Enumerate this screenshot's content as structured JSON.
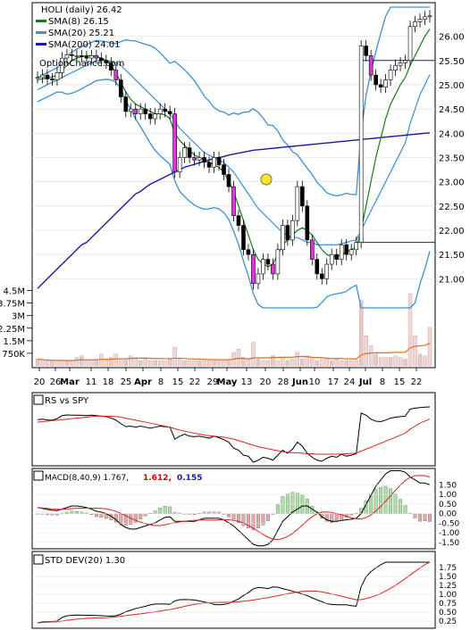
{
  "chart_data": [
    {
      "type": "candlestick",
      "title": "HOLI (daily) 26.42",
      "legend": [
        {
          "label": "SMA(8) 26.15",
          "color": "#1a7a1a"
        },
        {
          "label": "SMA(20) 25.21",
          "color": "#3b8fd6"
        },
        {
          "label": "SMA(200) 24.01",
          "color": "#1a1aa8"
        }
      ],
      "watermark": "OptionChance.com",
      "price_ticks": [
        "26.00",
        "25.50",
        "25.00",
        "24.50",
        "24.00",
        "23.50",
        "23.00",
        "22.50",
        "22.00",
        "21.50",
        "21.00"
      ],
      "volume_ticks": [
        "4.5M",
        "3.75M",
        "3M",
        "2.25M",
        "1.5M",
        "750K"
      ],
      "date_ticks": [
        "20",
        "26",
        "Mar",
        "11",
        "18",
        "25",
        "Apr",
        "8",
        "15",
        "22",
        "29",
        "May",
        "13",
        "20",
        "28",
        "Jun",
        "10",
        "17",
        "24",
        "Jul",
        "8",
        "15",
        "22"
      ],
      "ylim": [
        20.4,
        26.6
      ],
      "close": [
        25.15,
        25.2,
        25.12,
        25.1,
        25.25,
        25.55,
        25.62,
        25.6,
        25.6,
        25.58,
        25.55,
        25.6,
        25.55,
        25.5,
        25.45,
        25.3,
        25.1,
        24.75,
        24.45,
        24.5,
        24.4,
        24.5,
        24.4,
        24.3,
        24.4,
        24.5,
        24.45,
        24.4,
        23.2,
        23.5,
        23.7,
        23.5,
        23.45,
        23.5,
        23.4,
        23.3,
        23.5,
        23.35,
        23.15,
        22.9,
        22.3,
        22.1,
        21.6,
        21.5,
        20.9,
        21.1,
        21.4,
        21.3,
        21.1,
        21.6,
        22.1,
        21.8,
        22.2,
        22.9,
        22.5,
        21.8,
        21.4,
        21.1,
        21.0,
        21.3,
        21.5,
        21.4,
        21.7,
        21.5,
        21.6,
        21.75,
        25.8,
        25.6,
        25.2,
        25.0,
        24.95,
        25.1,
        25.3,
        25.4,
        25.45,
        25.5,
        26.2,
        26.3,
        26.35,
        26.4,
        26.42
      ],
      "sma8": [
        25.1,
        25.12,
        25.14,
        25.16,
        25.2,
        25.3,
        25.4,
        25.5,
        25.55,
        25.58,
        25.6,
        25.6,
        25.58,
        25.55,
        25.5,
        25.4,
        25.25,
        25.05,
        24.85,
        24.7,
        24.6,
        24.55,
        24.5,
        24.45,
        24.4,
        24.4,
        24.38,
        24.3,
        24.0,
        23.85,
        23.75,
        23.65,
        23.55,
        23.5,
        23.45,
        23.4,
        23.35,
        23.3,
        23.2,
        23.0,
        22.8,
        22.5,
        22.2,
        21.9,
        21.6,
        21.4,
        21.3,
        21.25,
        21.3,
        21.5,
        21.7,
        21.8,
        21.9,
        22.0,
        22.05,
        22.0,
        21.9,
        21.75,
        21.6,
        21.5,
        21.45,
        21.45,
        21.5,
        21.55,
        21.6,
        21.65,
        22.0,
        22.5,
        23.0,
        23.5,
        23.9,
        24.3,
        24.6,
        24.8,
        25.0,
        25.15,
        25.4,
        25.6,
        25.8,
        26.0,
        26.15
      ],
      "sma20": [
        24.9,
        24.95,
        25.0,
        25.05,
        25.1,
        25.15,
        25.2,
        25.25,
        25.3,
        25.35,
        25.4,
        25.45,
        25.5,
        25.5,
        25.5,
        25.48,
        25.45,
        25.4,
        25.3,
        25.2,
        25.1,
        25.0,
        24.9,
        24.8,
        24.7,
        24.6,
        24.5,
        24.4,
        24.25,
        24.1,
        24.0,
        23.9,
        23.8,
        23.7,
        23.6,
        23.55,
        23.5,
        23.45,
        23.4,
        23.3,
        23.2,
        23.05,
        22.9,
        22.75,
        22.6,
        22.45,
        22.35,
        22.25,
        22.15,
        22.05,
        21.95,
        21.9,
        21.85,
        21.85,
        21.8,
        21.75,
        21.75,
        21.7,
        21.7,
        21.7,
        21.7,
        21.7,
        21.72,
        21.75,
        21.78,
        21.8,
        22.0,
        22.2,
        22.4,
        22.6,
        22.8,
        23.0,
        23.2,
        23.4,
        23.6,
        23.8,
        24.2,
        24.5,
        24.8,
        25.0,
        25.21
      ],
      "sma200": [
        20.8,
        20.9,
        21.0,
        21.1,
        21.2,
        21.3,
        21.4,
        21.5,
        21.6,
        21.7,
        21.75,
        21.85,
        21.95,
        22.05,
        22.15,
        22.25,
        22.35,
        22.45,
        22.55,
        22.65,
        22.75,
        22.8,
        22.88,
        22.95,
        23.0,
        23.05,
        23.1,
        23.15,
        23.2,
        23.25,
        23.3,
        23.33,
        23.36,
        23.39,
        23.42,
        23.45,
        23.48,
        23.5,
        23.52,
        23.55,
        23.57,
        23.59,
        23.61,
        23.63,
        23.65,
        23.66,
        23.67,
        23.68,
        23.69,
        23.7,
        23.71,
        23.72,
        23.73,
        23.74,
        23.75,
        23.76,
        23.77,
        23.78,
        23.79,
        23.8,
        23.81,
        23.82,
        23.83,
        23.84,
        23.85,
        23.86,
        23.87,
        23.88,
        23.89,
        23.9,
        23.91,
        23.92,
        23.93,
        23.94,
        23.95,
        23.96,
        23.97,
        23.98,
        23.99,
        24.0,
        24.01
      ],
      "volume_m": [
        0.4,
        0.35,
        0.3,
        0.3,
        0.3,
        0.3,
        0.3,
        0.3,
        0.5,
        0.6,
        0.3,
        0.35,
        0.4,
        0.7,
        0.4,
        0.5,
        0.7,
        0.4,
        0.35,
        0.6,
        0.5,
        0.3,
        0.4,
        0.3,
        0.3,
        0.3,
        0.3,
        0.4,
        1.1,
        0.4,
        0.3,
        0.3,
        0.3,
        0.3,
        0.3,
        0.3,
        0.3,
        0.3,
        0.3,
        0.3,
        0.8,
        1.0,
        0.5,
        0.4,
        1.4,
        0.4,
        0.3,
        0.3,
        0.6,
        0.3,
        0.5,
        0.3,
        0.4,
        0.8,
        0.4,
        0.6,
        0.5,
        0.3,
        0.4,
        0.5,
        0.3,
        0.4,
        0.3,
        0.3,
        0.3,
        0.3,
        3.9,
        1.8,
        1.2,
        0.7,
        0.5,
        0.5,
        0.5,
        0.6,
        0.5,
        0.4,
        4.3,
        1.8,
        0.7,
        0.6,
        2.3
      ],
      "rs_label": "RS vs SPY",
      "macd_label": "MACD(8,40,9) 1.767,",
      "macd_signal": "1.612,",
      "macd_hist": "0.155",
      "macd_ticks": [
        "1.50",
        "1.00",
        "0.50",
        "0.00",
        "-0.50",
        "-1.00",
        "-1.50"
      ],
      "std_label": "STD DEV(20) 1.30",
      "std_ticks": [
        "1.75",
        "1.50",
        "1.25",
        "1.00",
        "0.75",
        "0.50",
        "0.25"
      ]
    }
  ]
}
